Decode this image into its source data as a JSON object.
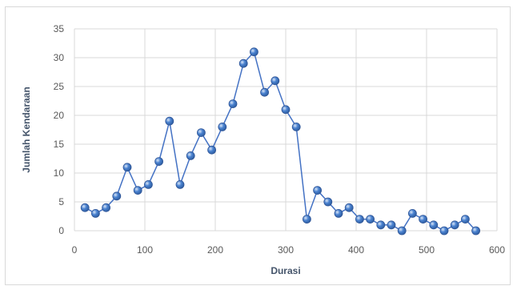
{
  "chart_data": {
    "type": "scatter",
    "xlabel": "Durasi",
    "ylabel": "Jumlah Kendaraan",
    "xlim": [
      0,
      600
    ],
    "ylim": [
      0,
      35
    ],
    "xticks": [
      0,
      100,
      200,
      300,
      400,
      500,
      600
    ],
    "yticks": [
      0,
      5,
      10,
      15,
      20,
      25,
      30,
      35
    ],
    "grid": true,
    "legend": "none",
    "colors": {
      "line": "#4472c4",
      "marker": "#4a82d0",
      "grid": "#d9d9d9"
    },
    "series": [
      {
        "x": [
          15,
          30,
          45,
          60,
          75,
          90,
          105,
          120,
          135,
          150,
          165,
          180,
          195,
          210,
          225,
          240,
          255,
          270,
          285,
          300,
          315,
          330,
          345,
          360,
          375,
          390,
          405,
          420,
          435,
          450,
          465,
          480,
          495,
          510,
          525,
          540,
          555,
          570
        ],
        "y": [
          4,
          3,
          4,
          6,
          11,
          7,
          8,
          12,
          19,
          8,
          13,
          17,
          14,
          18,
          22,
          29,
          31,
          24,
          26,
          21,
          18,
          2,
          7,
          5,
          3,
          4,
          2,
          2,
          1,
          1,
          0,
          3,
          2,
          1,
          0,
          1,
          2,
          0
        ]
      }
    ]
  }
}
